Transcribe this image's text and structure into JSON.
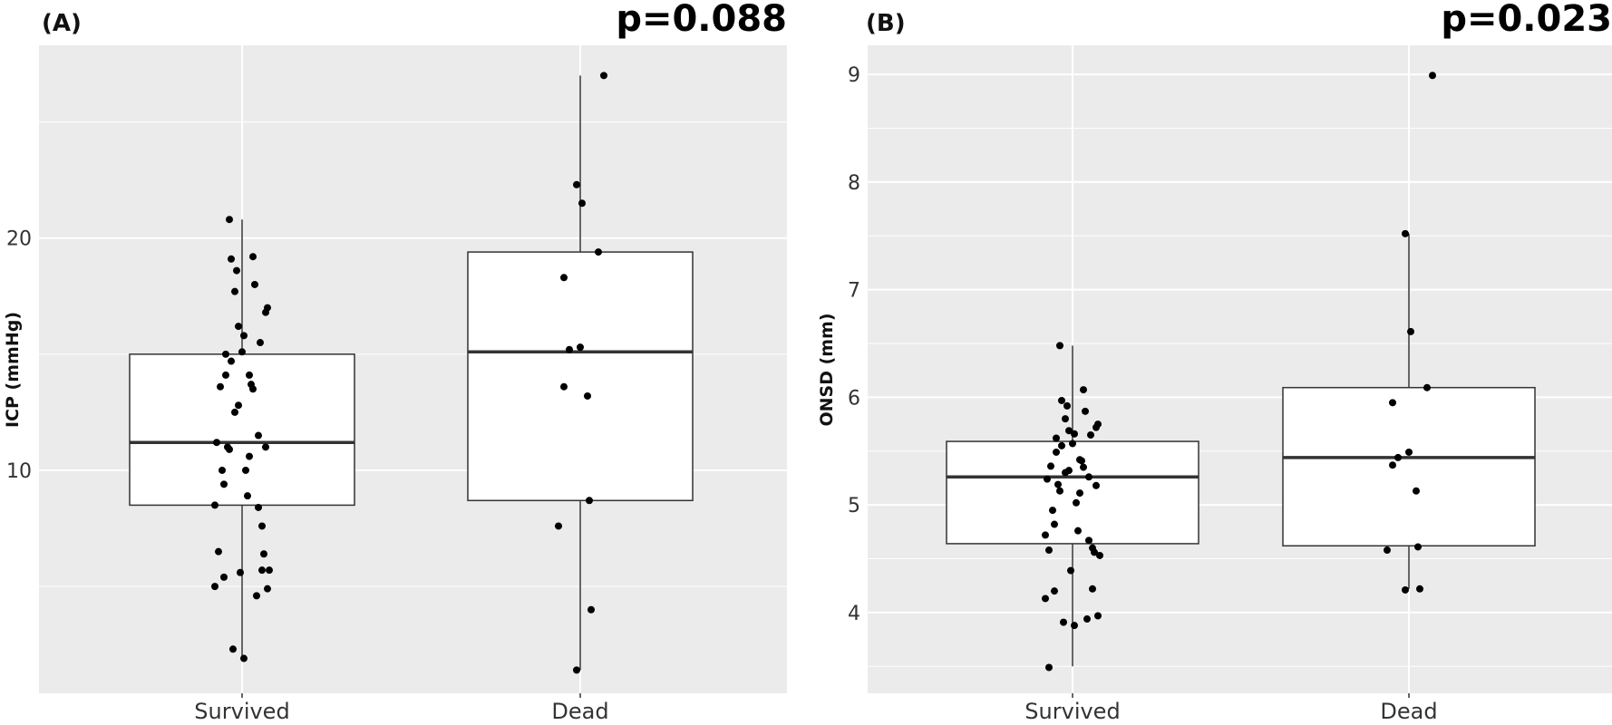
{
  "chart_data": [
    {
      "type": "box",
      "panel_label": "(A)",
      "p_value": "p=0.088",
      "ylabel": "ICP (mmHg)",
      "xlabel": "",
      "categories": [
        "Survived",
        "Dead"
      ],
      "ylim": [
        0.4,
        28.3
      ],
      "y_ticks": [
        10,
        20
      ],
      "grid": true,
      "boxes": [
        {
          "category": "Survived",
          "min": 2.0,
          "q1": 8.5,
          "median": 11.2,
          "q3": 15.0,
          "max": 20.8
        },
        {
          "category": "Dead",
          "min": 1.4,
          "q1": 8.7,
          "median": 15.1,
          "q3": 19.4,
          "max": 27.0
        }
      ],
      "points": [
        {
          "category": "Survived",
          "values": [
            20.8,
            19.2,
            19.1,
            18.6,
            18.0,
            17.7,
            17.0,
            16.8,
            16.2,
            15.8,
            15.5,
            15.0,
            15.1,
            14.7,
            14.1,
            14.1,
            13.7,
            13.6,
            13.5,
            12.8,
            12.5,
            11.5,
            11.2,
            11.0,
            11.0,
            10.9,
            10.6,
            10.0,
            10.0,
            9.4,
            8.9,
            8.5,
            8.4,
            7.6,
            6.5,
            6.4,
            5.7,
            5.6,
            5.7,
            5.4,
            5.0,
            4.9,
            4.6,
            2.3,
            1.9
          ]
        },
        {
          "category": "Dead",
          "values": [
            27.0,
            22.3,
            21.5,
            19.4,
            18.3,
            15.3,
            15.2,
            13.6,
            13.2,
            8.7,
            7.6,
            4.0,
            1.4
          ]
        }
      ]
    },
    {
      "type": "box",
      "panel_label": "(B)",
      "p_value": "p=0.023",
      "ylabel": "ONSD (mm)",
      "xlabel": "",
      "categories": [
        "Survived",
        "Dead"
      ],
      "ylim": [
        3.25,
        9.27
      ],
      "y_ticks": [
        4,
        5,
        6,
        7,
        8,
        9
      ],
      "grid": true,
      "boxes": [
        {
          "category": "Survived",
          "min": 3.5,
          "q1": 4.64,
          "median": 5.26,
          "q3": 5.59,
          "max": 6.48
        },
        {
          "category": "Dead",
          "min": 4.22,
          "q1": 4.62,
          "median": 5.44,
          "q3": 6.09,
          "max": 7.52
        }
      ],
      "points": [
        {
          "category": "Survived",
          "values": [
            6.48,
            6.07,
            5.97,
            5.92,
            5.87,
            5.8,
            5.75,
            5.72,
            5.69,
            5.66,
            5.65,
            5.62,
            5.57,
            5.55,
            5.49,
            5.42,
            5.41,
            5.36,
            5.35,
            5.32,
            5.3,
            5.26,
            5.24,
            5.19,
            5.18,
            5.13,
            5.11,
            5.02,
            4.95,
            4.82,
            4.76,
            4.72,
            4.67,
            4.6,
            4.58,
            4.56,
            4.53,
            4.39,
            4.22,
            4.2,
            4.13,
            3.97,
            3.94,
            3.91,
            3.88,
            3.49
          ]
        },
        {
          "category": "Dead",
          "values": [
            8.99,
            7.52,
            6.61,
            6.09,
            5.95,
            5.49,
            5.44,
            5.37,
            5.13,
            4.61,
            4.58,
            4.22,
            4.21
          ]
        }
      ]
    }
  ]
}
